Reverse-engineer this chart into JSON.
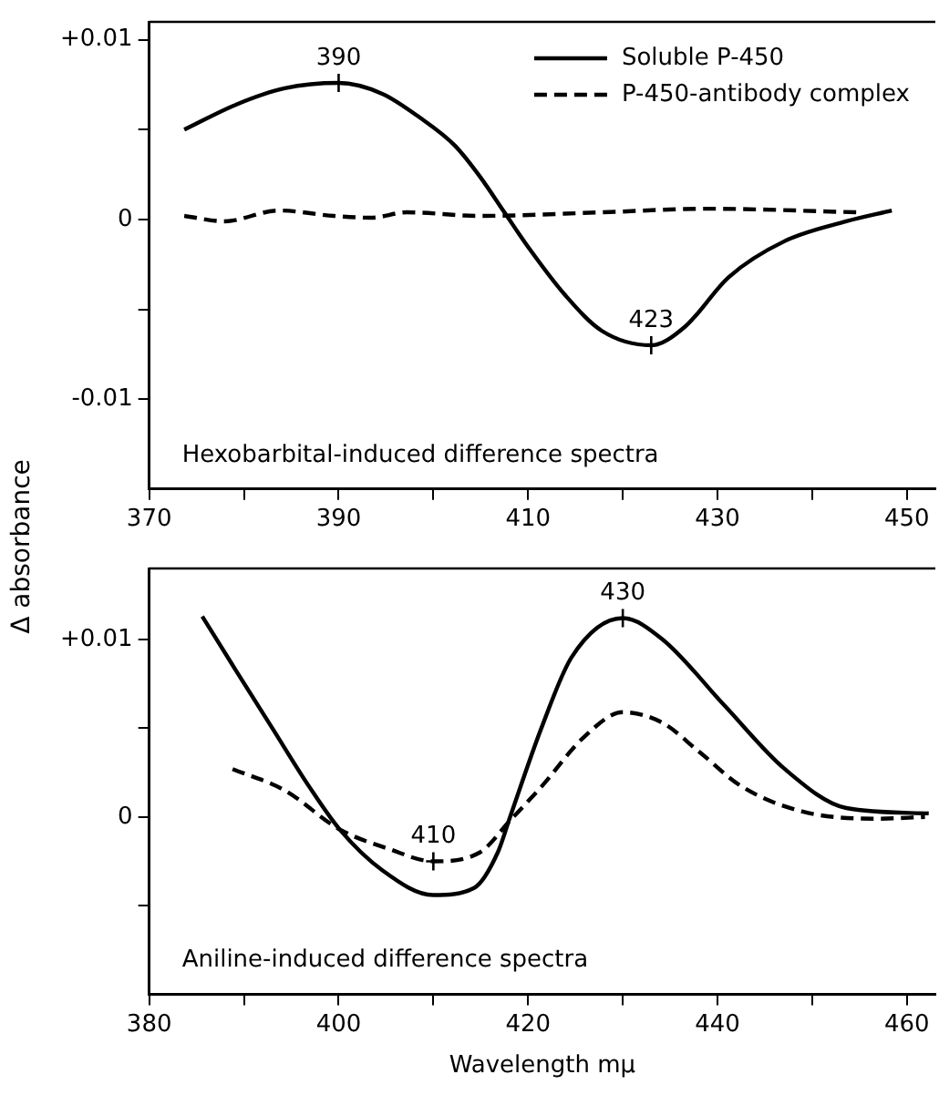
{
  "chart_data": [
    {
      "type": "line",
      "ylabel": "Δ absorbance",
      "legend": "top right",
      "marker": "none",
      "xlim": [
        370,
        453
      ],
      "xticks": [
        370,
        {
          "value": 380,
          "label": null
        },
        390,
        {
          "value": 400,
          "label": null
        },
        410,
        {
          "value": 420,
          "label": null
        },
        430,
        {
          "value": 440,
          "label": null
        },
        450
      ],
      "ylim": [
        -0.015,
        0.011
      ],
      "yticks": [
        {
          "value": -0.01,
          "label": "-0.01"
        },
        {
          "value": -0.005,
          "label": null
        },
        0,
        {
          "value": 0.005,
          "label": null
        },
        {
          "value": 0.01,
          "label": "+0.01"
        }
      ],
      "annotations": [
        {
          "text": "390",
          "x": 390,
          "y": 0.0076
        },
        {
          "text": "423",
          "x": 423,
          "y": -0.007
        },
        "Hexobarbital-induced difference spectra"
      ],
      "series": [
        {
          "name": "Soluble P-450",
          "color": "#000000",
          "line_style": "solid",
          "x": [
            373.7,
            379.2,
            384.3,
            390,
            394.6,
            398.5,
            402.3,
            404.9,
            407.5,
            410.1,
            413.9,
            417.8,
            423,
            426.5,
            431.2,
            437.1,
            443.6,
            448.4
          ],
          "values": [
            0.005,
            0.0064,
            0.0073,
            0.0076,
            0.007,
            0.0057,
            0.0041,
            0.0024,
            0.0004,
            -0.0016,
            -0.0042,
            -0.0062,
            -0.007,
            -0.006,
            -0.0032,
            -0.0012,
            -0.0001,
            0.0005
          ]
        },
        {
          "name": "P-450-antibody complex",
          "color": "#000000",
          "line_style": "dashed",
          "x": [
            373.7,
            377.9,
            383.7,
            389.5,
            393.4,
            397.2,
            404.9,
            417.8,
            428.8,
            444.8
          ],
          "values": [
            0.0002,
            -0.0001,
            0.0005,
            0.0002,
            0.0001,
            0.0004,
            0.0002,
            0.0004,
            0.0006,
            0.0004
          ]
        }
      ]
    },
    {
      "type": "line",
      "xlabel": "Wavelength mμ",
      "marker": "none",
      "xlim": [
        380,
        463
      ],
      "xticks": [
        380,
        {
          "value": 390,
          "label": null
        },
        400,
        {
          "value": 410,
          "label": null
        },
        420,
        {
          "value": 430,
          "label": null
        },
        440,
        {
          "value": 450,
          "label": null
        },
        460
      ],
      "ylim": [
        -0.01,
        0.014
      ],
      "yticks": [
        {
          "value": -0.005,
          "label": null
        },
        0,
        {
          "value": 0.005,
          "label": null
        },
        {
          "value": 0.01,
          "label": "+0.01"
        }
      ],
      "annotations": [
        {
          "text": "410",
          "x": 410,
          "y": -0.0025
        },
        {
          "text": "430",
          "x": 430,
          "y": 0.0112
        },
        "Aniline-induced difference spectra"
      ],
      "series": [
        {
          "color": "#000000",
          "line_style": "solid",
          "x": [
            385.6,
            389.1,
            393.0,
            396.9,
            400.1,
            404.6,
            410,
            414.3,
            416.8,
            418.1,
            421.4,
            424.6,
            430,
            434.2,
            440.7,
            447.1,
            453.6,
            462.3
          ],
          "values": [
            0.0113,
            0.0083,
            0.005,
            0.0017,
            -0.0007,
            -0.003,
            -0.0044,
            -0.004,
            -0.002,
            0,
            0.005,
            0.009,
            0.0112,
            0.01,
            0.0063,
            0.0027,
            0.0005,
            0.0002
          ]
        },
        {
          "color": "#000000",
          "line_style": "dashed",
          "x": [
            388.8,
            394.3,
            400.1,
            405.3,
            410,
            414.9,
            418.1,
            421.4,
            425.9,
            430,
            434.2,
            438,
            442.6,
            449,
            456.8,
            461.9
          ],
          "values": [
            0.0027,
            0.0015,
            -0.0007,
            -0.0018,
            -0.0025,
            -0.002,
            -0.0002,
            0.0017,
            0.0045,
            0.0059,
            0.0053,
            0.0037,
            0.0017,
            0.0003,
            -0.0001,
            0
          ]
        }
      ]
    }
  ]
}
